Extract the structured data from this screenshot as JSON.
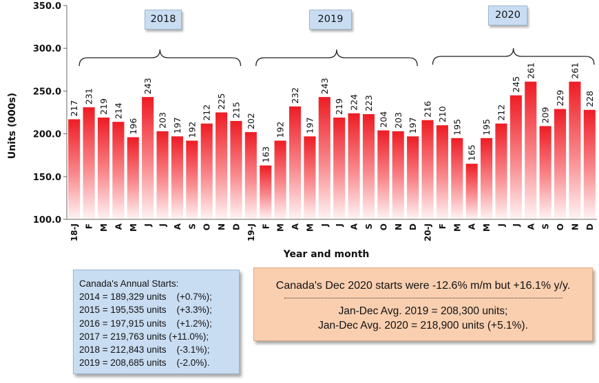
{
  "chart_data": {
    "type": "bar",
    "title": "",
    "xlabel": "Year and month",
    "ylabel": "Units (000s)",
    "ylim": [
      100,
      350
    ],
    "yticks": [
      "100.0",
      "150.0",
      "200.0",
      "250.0",
      "300.0",
      "350.0"
    ],
    "categories": [
      "18-J",
      "F",
      "M",
      "A",
      "M",
      "J",
      "J",
      "A",
      "S",
      "O",
      "N",
      "D",
      "19-J",
      "F",
      "M",
      "A",
      "M",
      "J",
      "J",
      "A",
      "S",
      "O",
      "N",
      "D",
      "20-J",
      "F",
      "M",
      "A",
      "M",
      "J",
      "J",
      "A",
      "S",
      "O",
      "N",
      "D"
    ],
    "values": [
      217,
      231,
      219,
      214,
      196,
      243,
      203,
      197,
      192,
      212,
      225,
      215,
      202,
      163,
      192,
      232,
      197,
      243,
      219,
      224,
      223,
      204,
      203,
      197,
      216,
      210,
      195,
      165,
      195,
      212,
      245,
      261,
      209,
      229,
      261,
      228
    ],
    "year_groups": [
      {
        "label": "2018",
        "start": 0,
        "end": 11
      },
      {
        "label": "2019",
        "start": 12,
        "end": 23
      },
      {
        "label": "2020",
        "start": 24,
        "end": 35
      }
    ],
    "grid": false
  },
  "annual_panel": {
    "heading": "Canada's Annual Starts:",
    "lines": [
      "2014 = 189,329 units    (+0.7%);",
      "2015 = 195,535 units    (+3.3%);",
      "2016 = 197,915 units    (+1.2%);",
      "2017 = 219,763 units (+11.0%);",
      "2018 = 212,843 units    (-3.1%);",
      "2019 = 208,685 units    (-2.0%)."
    ]
  },
  "summary_panel": {
    "headline": "Canada's Dec 2020 starts were -12.6% m/m but +16.1% y/y.",
    "avg_2019": "Jan-Dec Avg. 2019 = 208,300 units;",
    "avg_2020": "Jan-Dec Avg. 2020 = 218,900 units (+5.1%)."
  },
  "colors": {
    "bar_top": "#ee1c24",
    "bar_bottom": "#fff2f2",
    "year_box": "#c9ddf2",
    "summary_box": "#f9cfb0"
  }
}
